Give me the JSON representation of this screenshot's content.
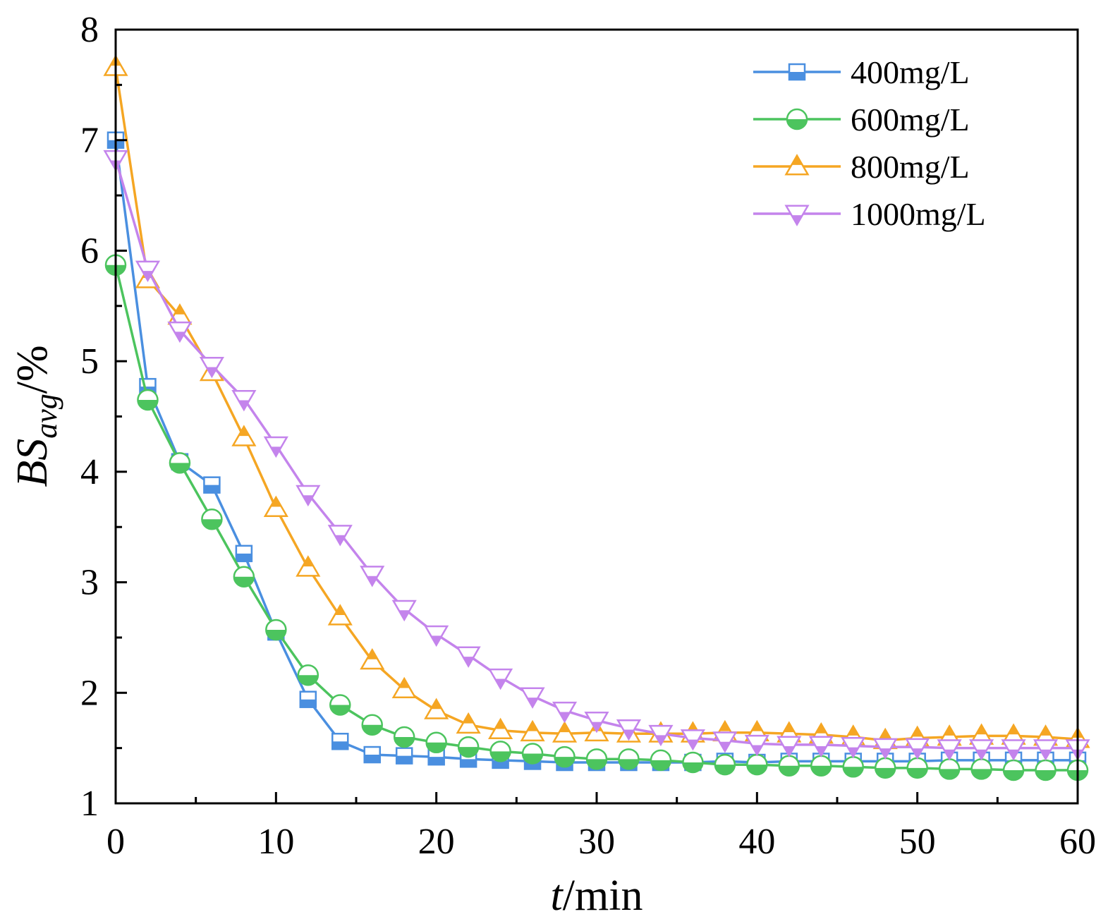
{
  "chart_data": {
    "type": "line",
    "title": "",
    "xlabel": {
      "italic": "t",
      "rest": "/min"
    },
    "ylabel": {
      "main": "BS",
      "sub": "avg",
      "rest": "/%"
    },
    "xlim": [
      0,
      60
    ],
    "ylim": [
      1,
      8
    ],
    "xticks": [
      0,
      10,
      20,
      30,
      40,
      50,
      60
    ],
    "yticks": [
      1,
      2,
      3,
      4,
      5,
      6,
      7,
      8
    ],
    "grid": false,
    "legend_position": "top-right",
    "x": [
      0,
      2,
      4,
      6,
      8,
      10,
      12,
      14,
      16,
      18,
      20,
      22,
      24,
      26,
      28,
      30,
      32,
      34,
      36,
      38,
      40,
      42,
      44,
      46,
      48,
      50,
      52,
      54,
      56,
      58,
      60
    ],
    "series": [
      {
        "name": "400mg/L",
        "color": "#4a8fe0",
        "marker": "square-half",
        "values": [
          7.0,
          4.77,
          4.09,
          3.88,
          3.26,
          2.55,
          1.94,
          1.56,
          1.44,
          1.43,
          1.42,
          1.4,
          1.39,
          1.38,
          1.37,
          1.37,
          1.37,
          1.37,
          1.37,
          1.38,
          1.37,
          1.38,
          1.38,
          1.38,
          1.38,
          1.38,
          1.39,
          1.39,
          1.39,
          1.39,
          1.39
        ]
      },
      {
        "name": "600mg/L",
        "color": "#4cc45e",
        "marker": "circle-half",
        "values": [
          5.87,
          4.65,
          4.08,
          3.57,
          3.05,
          2.57,
          2.16,
          1.89,
          1.71,
          1.6,
          1.55,
          1.51,
          1.47,
          1.45,
          1.42,
          1.4,
          1.4,
          1.39,
          1.37,
          1.35,
          1.35,
          1.34,
          1.34,
          1.33,
          1.32,
          1.32,
          1.31,
          1.31,
          1.3,
          1.3,
          1.3
        ]
      },
      {
        "name": "800mg/L",
        "color": "#f5a623",
        "marker": "triangle-up-half",
        "values": [
          7.66,
          5.74,
          5.41,
          4.9,
          4.31,
          3.67,
          3.13,
          2.69,
          2.29,
          2.03,
          1.84,
          1.71,
          1.66,
          1.64,
          1.63,
          1.64,
          1.63,
          1.63,
          1.63,
          1.64,
          1.64,
          1.63,
          1.62,
          1.6,
          1.57,
          1.59,
          1.6,
          1.61,
          1.61,
          1.6,
          1.58
        ]
      },
      {
        "name": "1000mg/L",
        "color": "#c484ec",
        "marker": "triangle-down-half",
        "values": [
          6.83,
          5.83,
          5.28,
          4.96,
          4.66,
          4.24,
          3.8,
          3.44,
          3.07,
          2.76,
          2.53,
          2.34,
          2.14,
          1.97,
          1.84,
          1.75,
          1.68,
          1.63,
          1.59,
          1.57,
          1.54,
          1.53,
          1.53,
          1.52,
          1.51,
          1.51,
          1.5,
          1.5,
          1.5,
          1.5,
          1.5
        ]
      }
    ]
  }
}
